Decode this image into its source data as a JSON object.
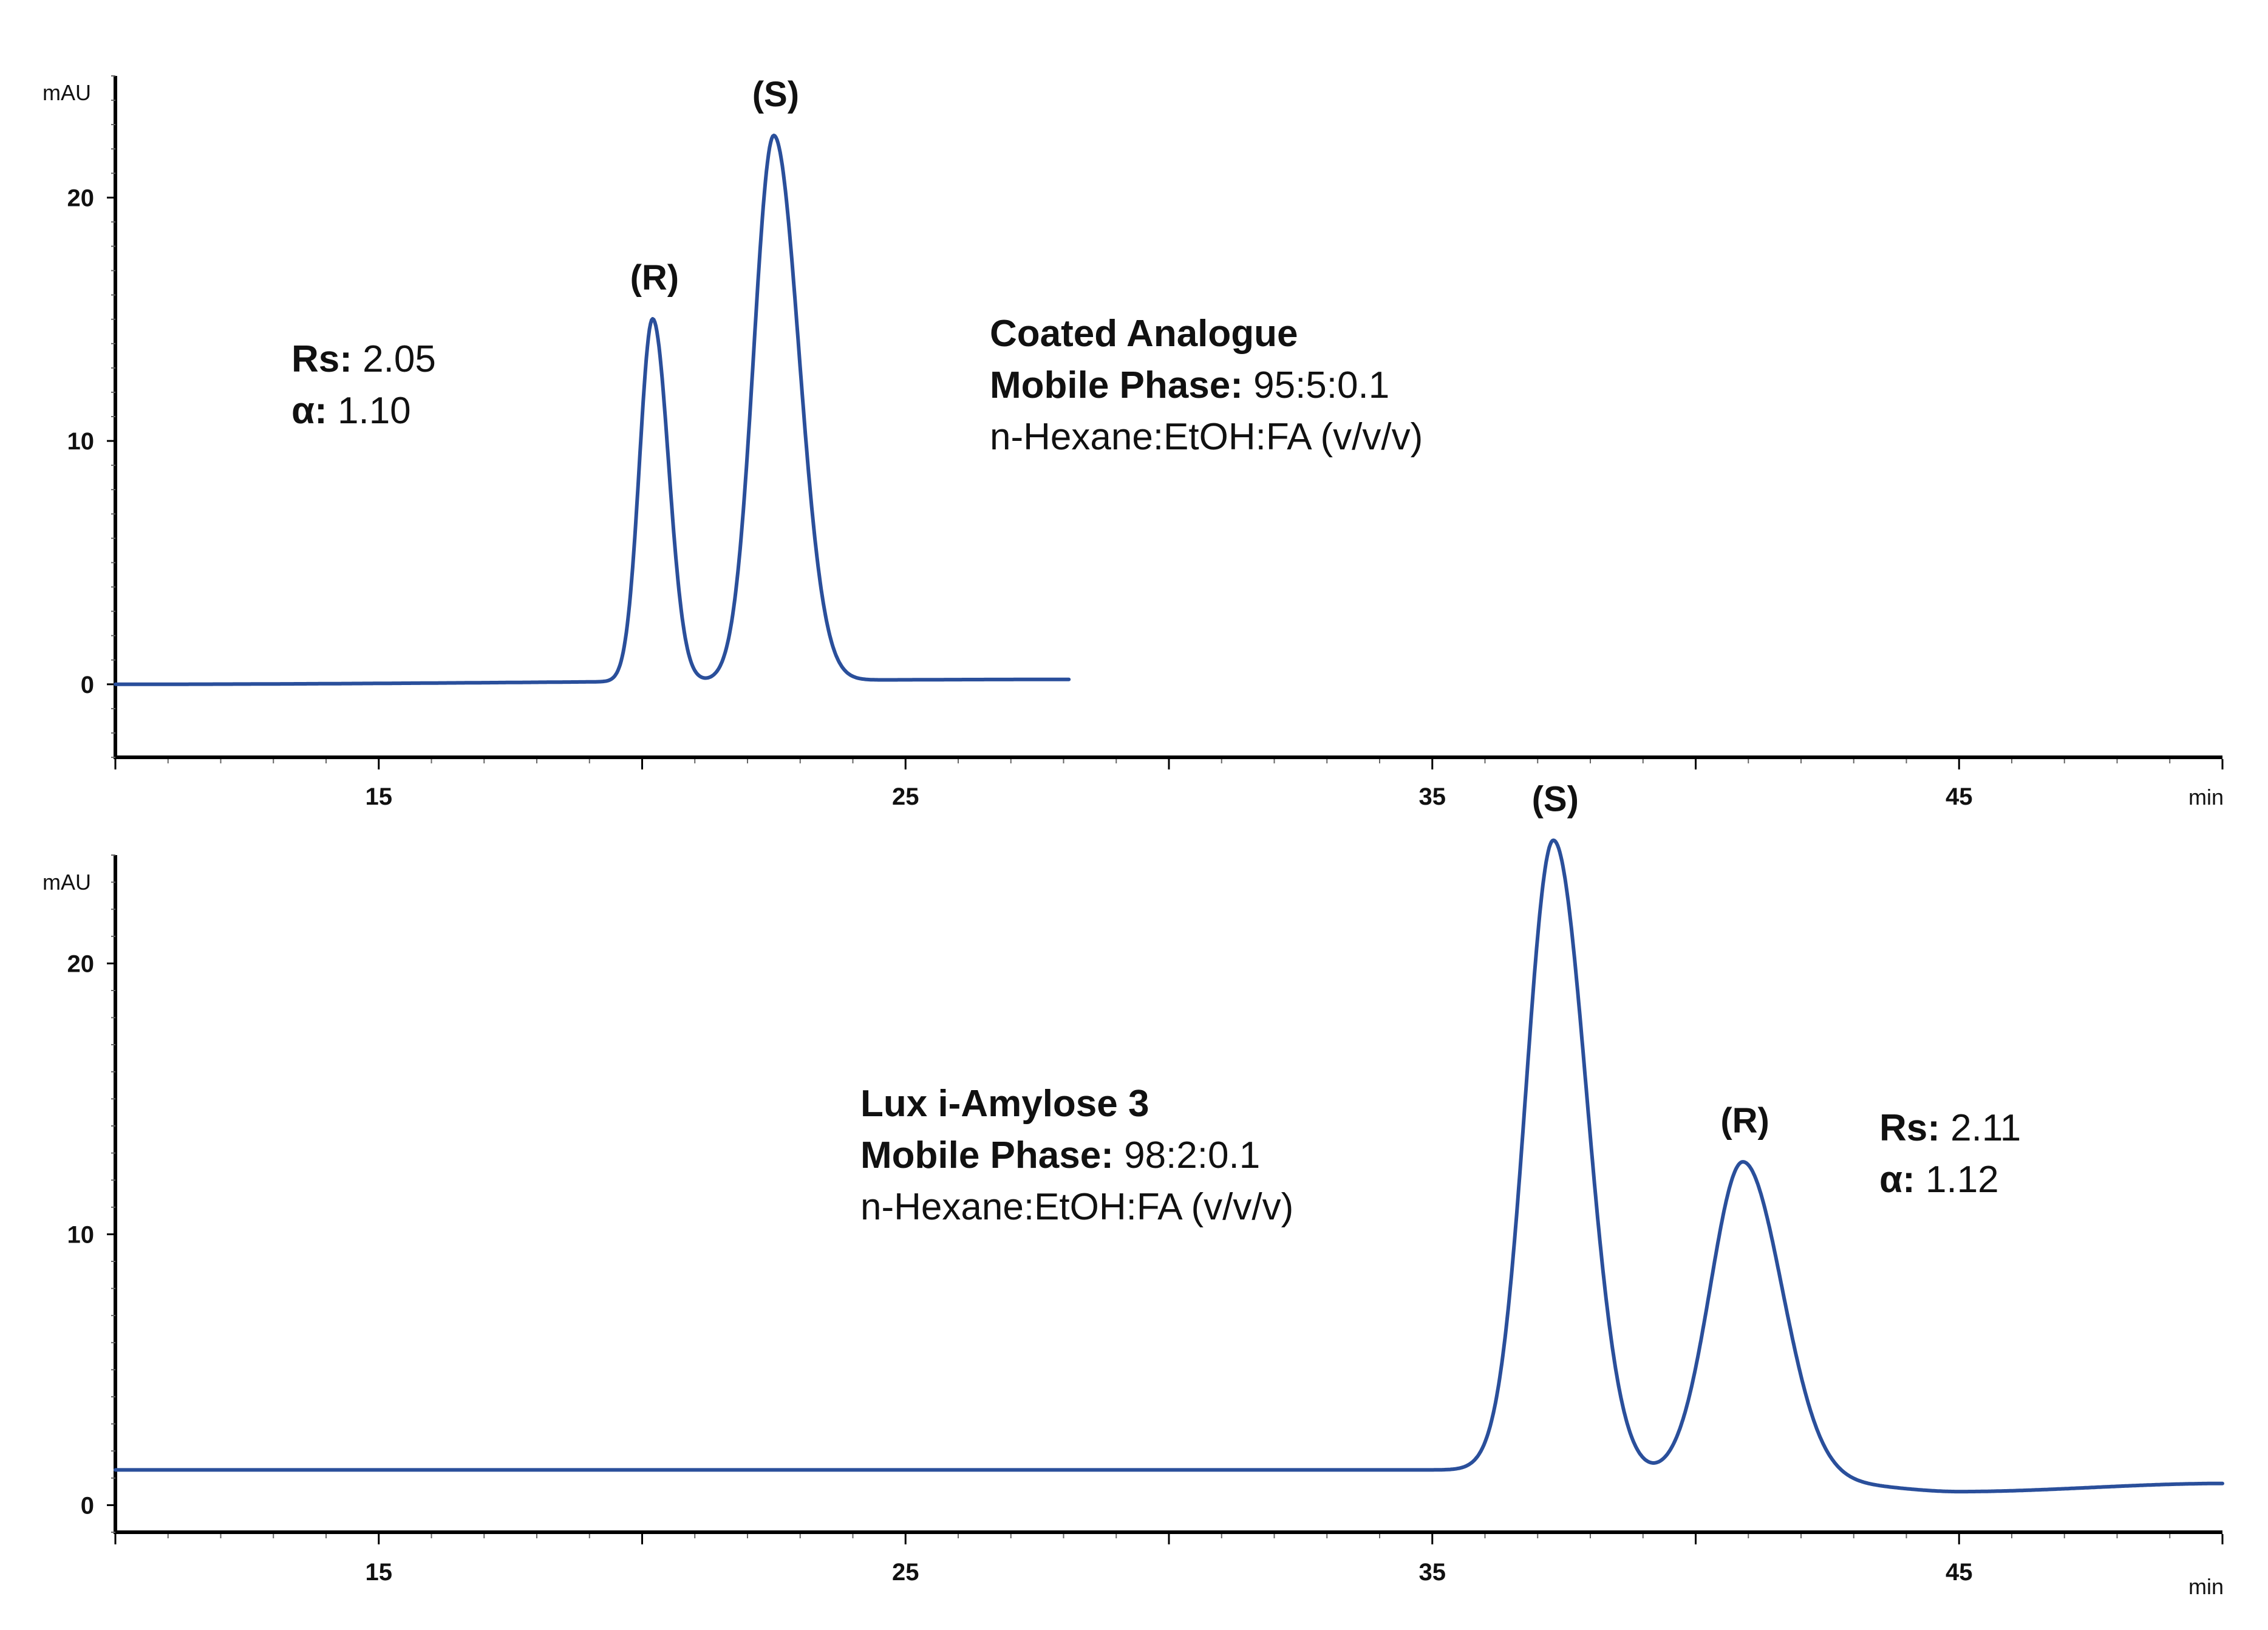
{
  "colors": {
    "trace": "#2a4f9b"
  },
  "chart_data": [
    {
      "type": "line",
      "ylabel": "mAU",
      "xlabel": "min",
      "xlim": [
        10,
        50
      ],
      "ylim": [
        -3,
        25
      ],
      "xticks": [
        15,
        25,
        35,
        45
      ],
      "yticks": [
        0,
        10,
        20
      ],
      "baseline_x": [
        10,
        28.1
      ],
      "baseline_y": [
        0.0,
        0.2
      ],
      "peaks": [
        {
          "label": "(R)",
          "rt": 20.2,
          "height": 14.9,
          "width": 0.25,
          "skew": 1.2
        },
        {
          "label": "(S)",
          "rt": 22.5,
          "height": 22.4,
          "width": 0.38,
          "skew": 1.25
        }
      ],
      "annotations": {
        "left": [
          {
            "bold": "Rs:",
            "text": " 2.05"
          },
          {
            "bold": "α:",
            "text": " 1.10"
          }
        ],
        "right": [
          {
            "bold": "Coated Analogue",
            "text": ""
          },
          {
            "bold": "Mobile Phase:",
            "text": " 95:5:0.1"
          },
          {
            "bold": "",
            "text": "n-Hexane:EtOH:FA (v/v/v)"
          }
        ]
      }
    },
    {
      "type": "line",
      "ylabel": "mAU",
      "xlabel": "min",
      "xlim": [
        10,
        50
      ],
      "ylim": [
        -1,
        24
      ],
      "xticks": [
        15,
        25,
        35,
        45
      ],
      "yticks": [
        0,
        10,
        20
      ],
      "baseline_x": [
        10,
        36,
        42.5,
        45,
        50
      ],
      "baseline_y": [
        1.3,
        1.3,
        0.8,
        0.5,
        0.8
      ],
      "peaks": [
        {
          "label": "(S)",
          "rt": 37.3,
          "height": 23.3,
          "width": 0.52,
          "skew": 1.2
        },
        {
          "label": "(R)",
          "rt": 40.9,
          "height": 11.8,
          "width": 0.62,
          "skew": 1.2
        }
      ],
      "annotations": {
        "left": [
          {
            "bold": "Lux i-Amylose 3",
            "text": ""
          },
          {
            "bold": "Mobile Phase:",
            "text": " 98:2:0.1"
          },
          {
            "bold": "",
            "text": "n-Hexane:EtOH:FA (v/v/v)"
          }
        ],
        "right": [
          {
            "bold": "Rs:",
            "text": " 2.11"
          },
          {
            "bold": "α:",
            "text": " 1.12"
          }
        ]
      }
    }
  ]
}
